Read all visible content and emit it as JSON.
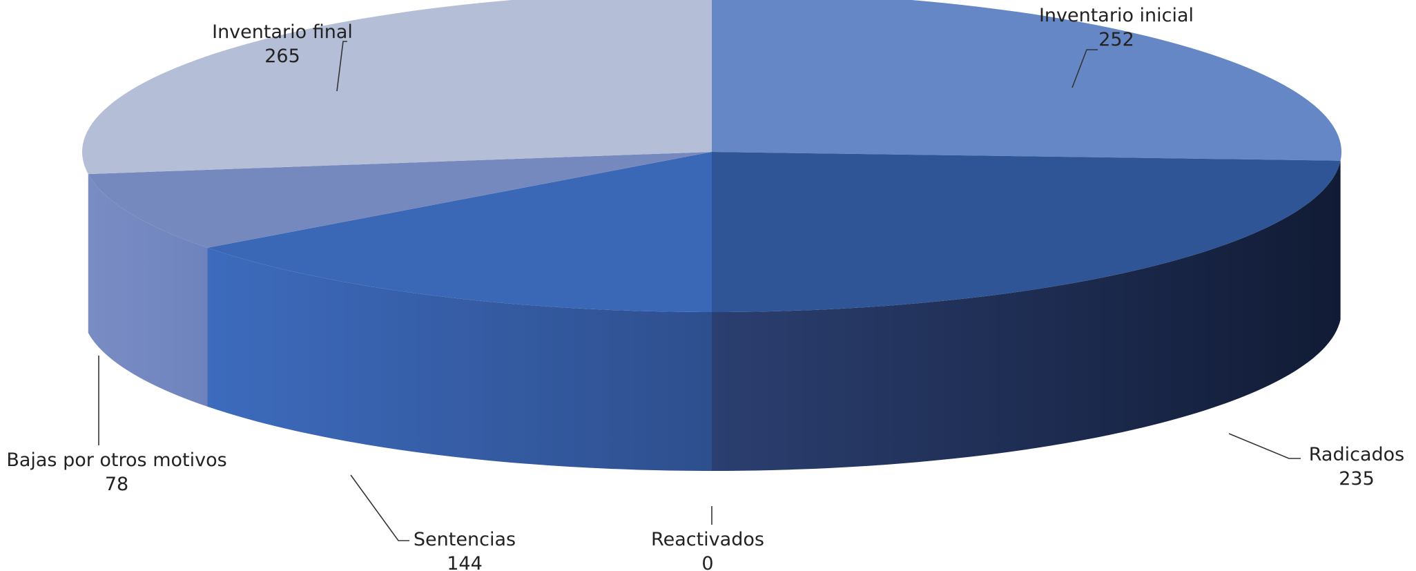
{
  "chart_data": {
    "type": "pie",
    "style": "3d",
    "title": "",
    "legend": "none",
    "slices": [
      {
        "label": "Inventario inicial",
        "value": 252,
        "color": "#6587c6"
      },
      {
        "label": "Radicados",
        "value": 235,
        "color": "#2f5596"
      },
      {
        "label": "Reactivados",
        "value": 0,
        "color": "#2f5596"
      },
      {
        "label": "Sentencias",
        "value": 144,
        "color": "#3b68b6"
      },
      {
        "label": "Bajas por otros motivos",
        "value": 78,
        "color": "#7689bf"
      },
      {
        "label": "Inventario final",
        "value": 265,
        "color": "#b4bed6"
      }
    ]
  }
}
